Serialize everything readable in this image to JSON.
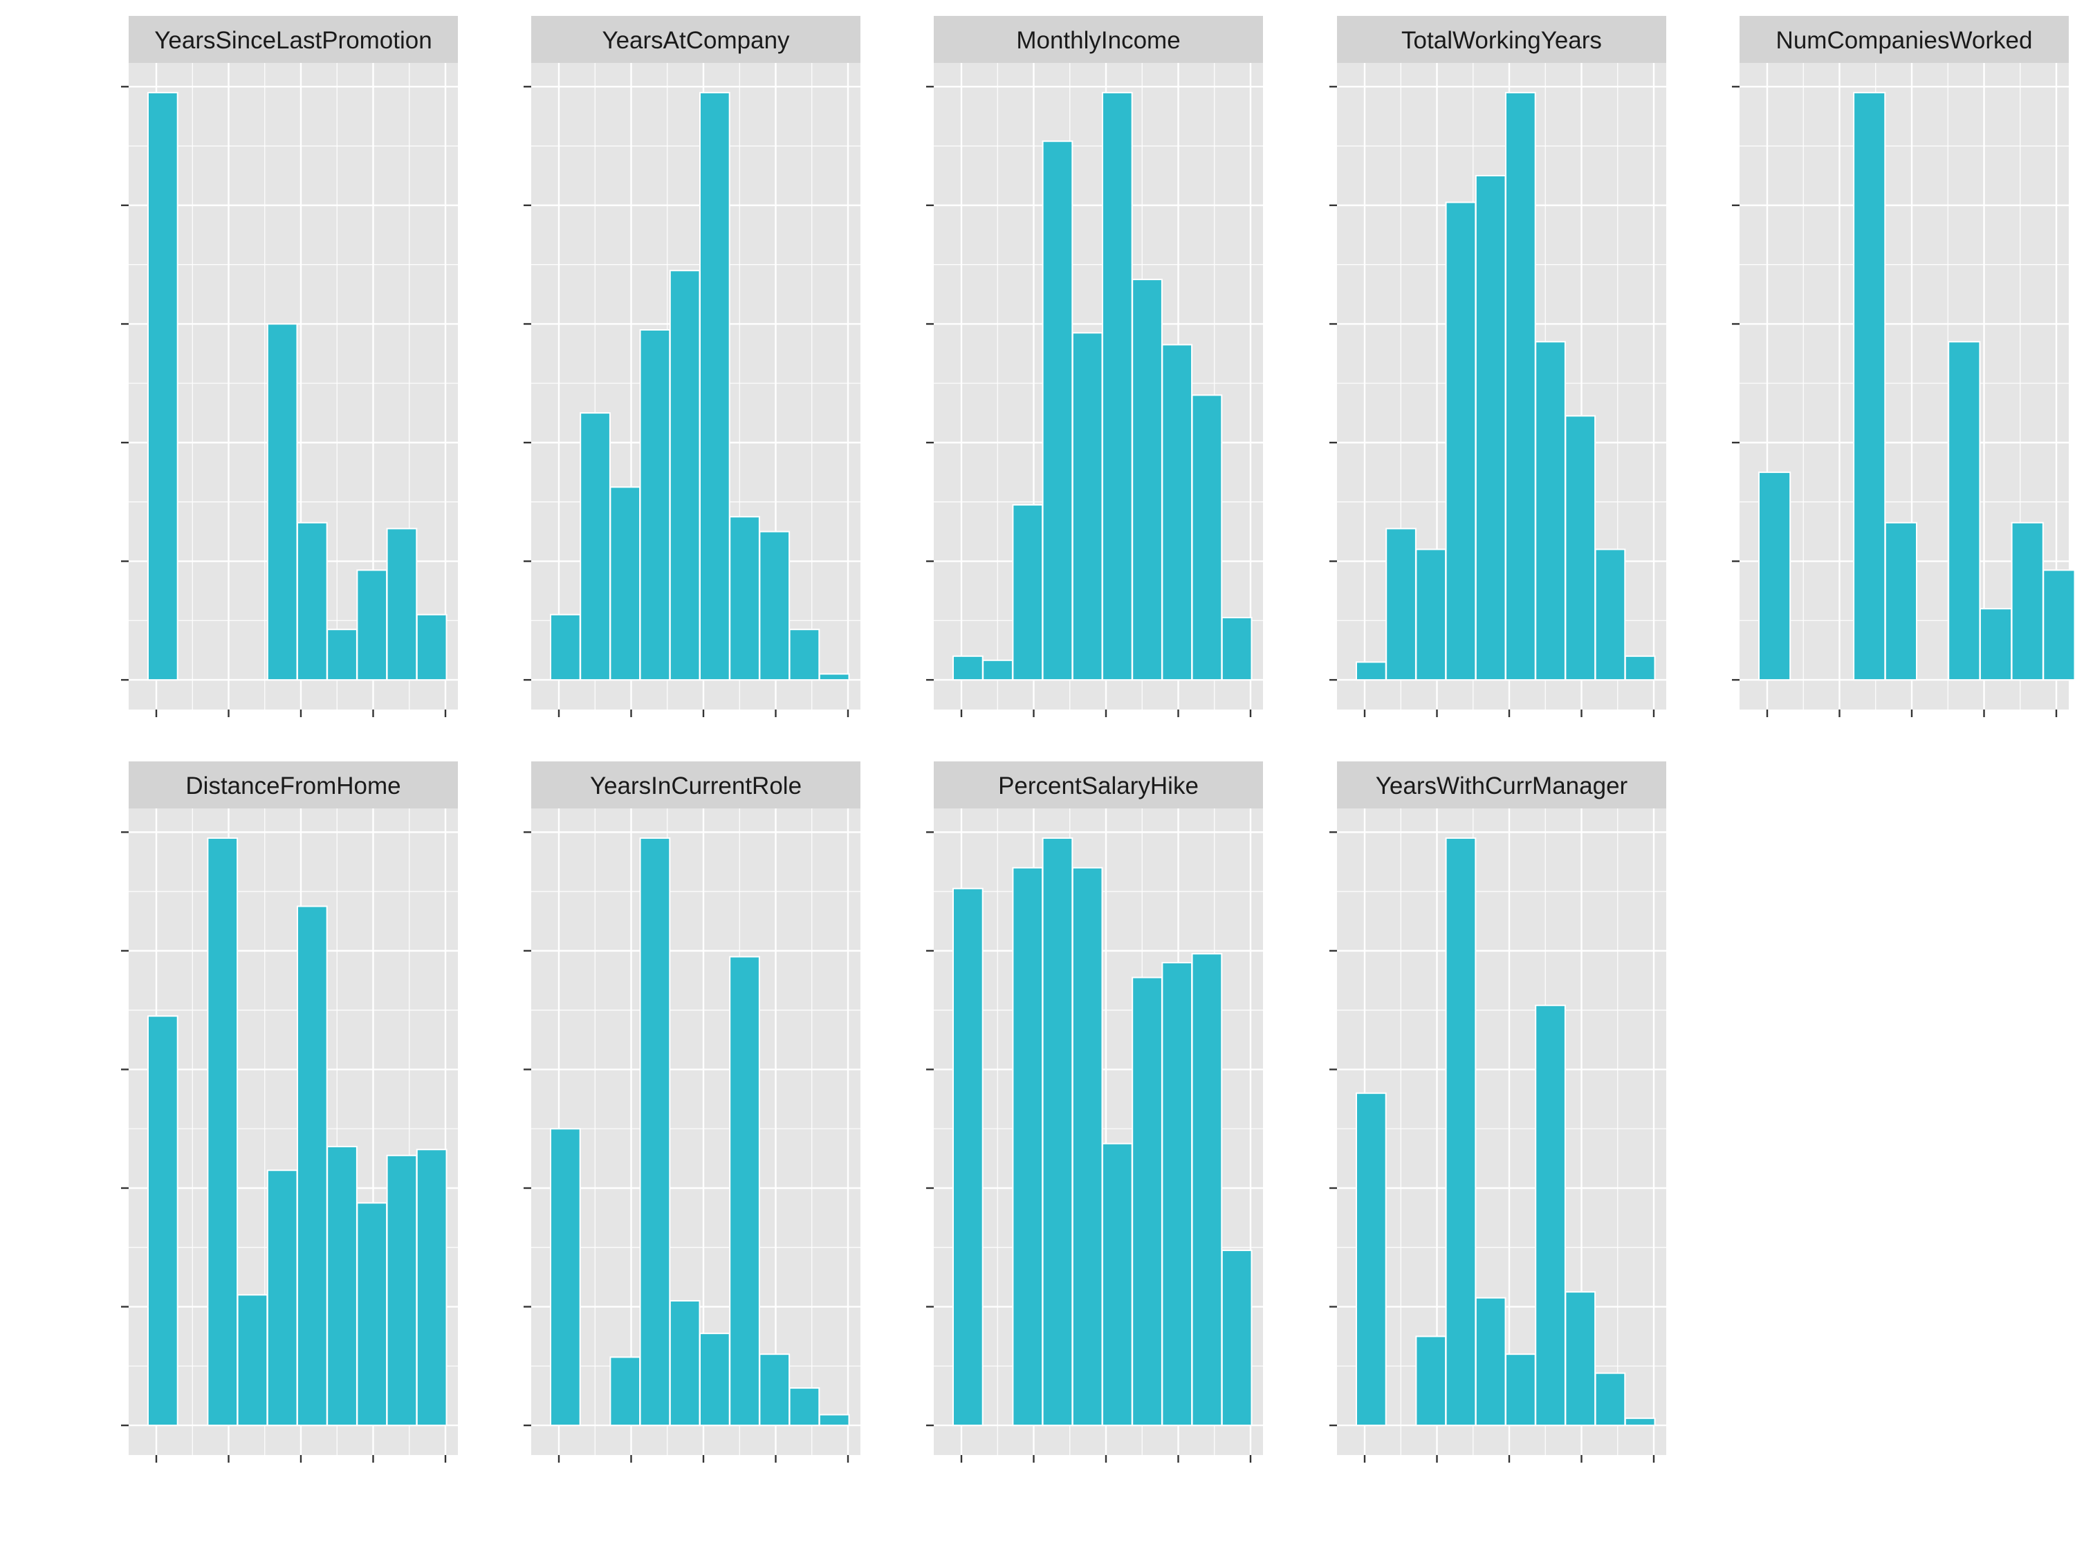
{
  "figure": {
    "background": "#ffffff",
    "panel_background": "#e5e5e5",
    "strip_background": "#d3d3d3",
    "grid_color": "#ffffff",
    "bar_fill": "#2dbbcd",
    "bar_outline": "#ffffff",
    "axis_tick_color": "#333333"
  },
  "chart_data": [
    {
      "type": "bar",
      "title": "YearsSinceLastPromotion",
      "grid": true,
      "x": [
        0,
        1,
        2,
        3,
        4,
        5,
        6,
        7,
        8,
        9,
        10
      ],
      "values": [
        0.99,
        0,
        0,
        0,
        0.6,
        0.265,
        0.085,
        0.185,
        0.255,
        0.11,
        0
      ],
      "ylim": [
        -0.05,
        1.04
      ]
    },
    {
      "type": "bar",
      "title": "YearsAtCompany",
      "grid": true,
      "x": [
        0,
        1,
        2,
        3,
        4,
        5,
        6,
        7,
        8,
        9,
        10
      ],
      "values": [
        0.11,
        0.45,
        0.325,
        0.59,
        0.69,
        0.99,
        0.275,
        0.25,
        0.085,
        0.01,
        0
      ],
      "ylim": [
        -0.05,
        1.04
      ]
    },
    {
      "type": "bar",
      "title": "MonthlyIncome",
      "grid": true,
      "x": [
        0,
        1,
        2,
        3,
        4,
        5,
        6,
        7,
        8,
        9,
        10
      ],
      "values": [
        0.04,
        0.033,
        0.295,
        0.908,
        0.585,
        0.99,
        0.675,
        0.565,
        0.48,
        0.105,
        0
      ],
      "ylim": [
        -0.05,
        1.04
      ]
    },
    {
      "type": "bar",
      "title": "TotalWorkingYears",
      "grid": true,
      "x": [
        0,
        1,
        2,
        3,
        4,
        5,
        6,
        7,
        8,
        9,
        10
      ],
      "values": [
        0.03,
        0.255,
        0.22,
        0.805,
        0.85,
        0.99,
        0.57,
        0.445,
        0.22,
        0.04,
        0
      ],
      "ylim": [
        -0.05,
        1.04
      ]
    },
    {
      "type": "bar",
      "title": "NumCompaniesWorked",
      "grid": true,
      "x": [
        0,
        1,
        2,
        3,
        4,
        5,
        6,
        7,
        8,
        9
      ],
      "values": [
        0.35,
        0,
        0,
        0.99,
        0.265,
        0,
        0.57,
        0.12,
        0.265,
        0.185
      ],
      "ylim": [
        -0.05,
        1.04
      ]
    },
    {
      "type": "bar",
      "title": "DistanceFromHome",
      "grid": true,
      "x": [
        0,
        1,
        2,
        3,
        4,
        5,
        6,
        7,
        8,
        9,
        10
      ],
      "values": [
        0.69,
        0,
        0.99,
        0.22,
        0.43,
        0.875,
        0.47,
        0.375,
        0.455,
        0.465,
        0
      ],
      "ylim": [
        -0.05,
        1.04
      ]
    },
    {
      "type": "bar",
      "title": "YearsInCurrentRole",
      "grid": true,
      "x": [
        0,
        1,
        2,
        3,
        4,
        5,
        6,
        7,
        8,
        9,
        10
      ],
      "values": [
        0.5,
        0,
        0.115,
        0.99,
        0.21,
        0.155,
        0.79,
        0.12,
        0.063,
        0.018,
        0
      ],
      "ylim": [
        -0.05,
        1.04
      ]
    },
    {
      "type": "bar",
      "title": "PercentSalaryHike",
      "grid": true,
      "x": [
        0,
        1,
        2,
        3,
        4,
        5,
        6,
        7,
        8,
        9,
        10
      ],
      "values": [
        0.905,
        0,
        0.94,
        0.99,
        0.94,
        0.475,
        0.755,
        0.78,
        0.795,
        0.295,
        0
      ],
      "ylim": [
        -0.05,
        1.04
      ]
    },
    {
      "type": "bar",
      "title": "YearsWithCurrManager",
      "grid": true,
      "x": [
        0,
        1,
        2,
        3,
        4,
        5,
        6,
        7,
        8,
        9,
        10
      ],
      "values": [
        0.56,
        0,
        0.15,
        0.99,
        0.215,
        0.12,
        0.708,
        0.225,
        0.088,
        0.012,
        0
      ],
      "ylim": [
        -0.05,
        1.04
      ]
    }
  ]
}
